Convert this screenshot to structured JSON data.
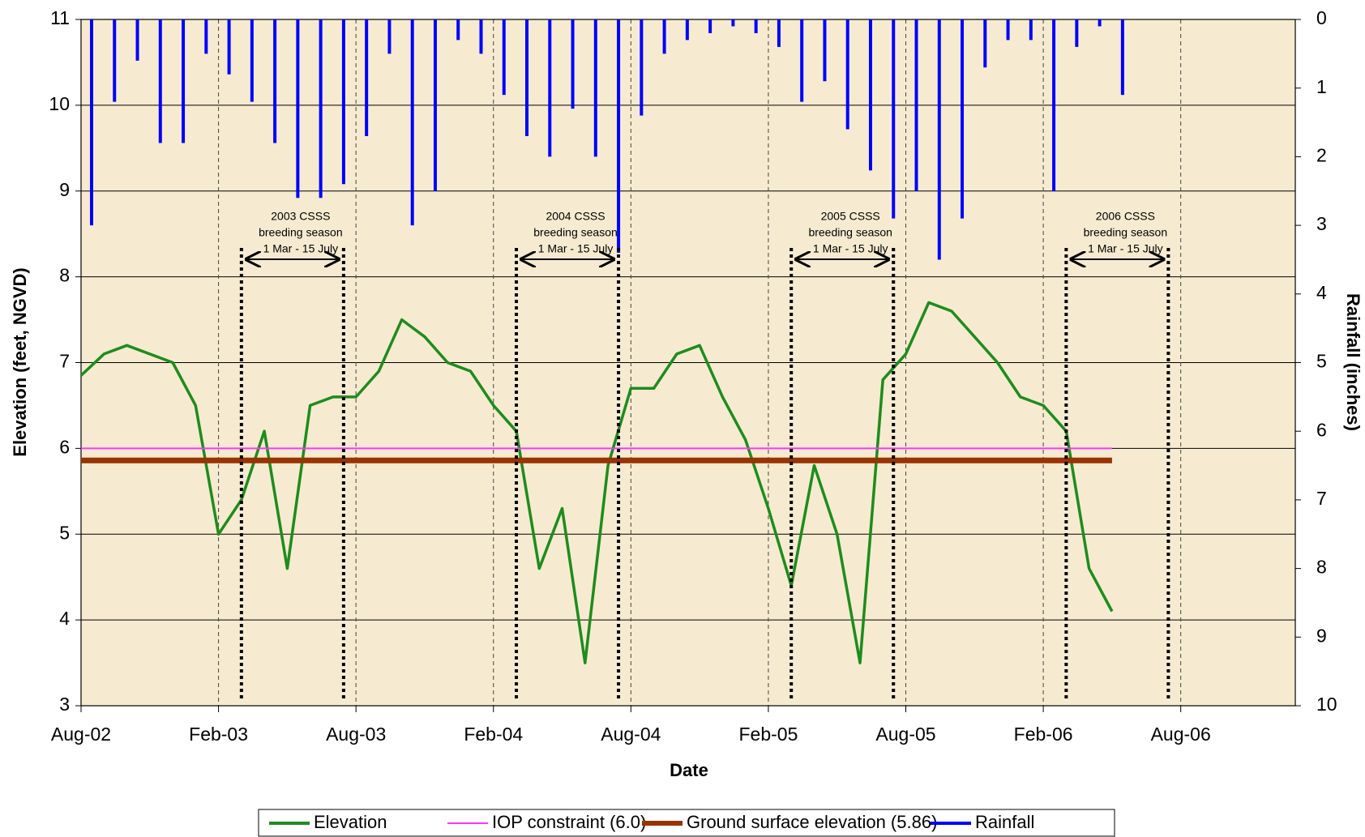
{
  "chart_data": {
    "type": "line",
    "xlabel": "Date",
    "ylabel": "Elevation (feet, NGVD)",
    "y2label": "Rainfall (inches)",
    "xlim": [
      "2002-08",
      "2007-01"
    ],
    "xticks": [
      {
        "value": "2002-08",
        "label": "Aug-02"
      },
      {
        "value": "2003-02",
        "label": "Feb-03"
      },
      {
        "value": "2003-08",
        "label": "Aug-03"
      },
      {
        "value": "2004-02",
        "label": "Feb-04"
      },
      {
        "value": "2004-08",
        "label": "Aug-04"
      },
      {
        "value": "2005-02",
        "label": "Feb-05"
      },
      {
        "value": "2005-08",
        "label": "Aug-05"
      },
      {
        "value": "2006-02",
        "label": "Feb-06"
      },
      {
        "value": "2006-08",
        "label": "Aug-06"
      }
    ],
    "ylim": [
      3,
      11
    ],
    "yticks": [
      3,
      4,
      5,
      6,
      7,
      8,
      9,
      10,
      11
    ],
    "y2lim": [
      10,
      0
    ],
    "y2ticks": [
      0,
      1,
      2,
      3,
      4,
      5,
      6,
      7,
      8,
      9,
      10
    ],
    "grid": true,
    "series": [
      {
        "name": "Elevation",
        "color": "#1e8c1e",
        "kind": "line",
        "x": [
          "2002-08",
          "2002-09",
          "2002-10",
          "2002-11",
          "2002-12",
          "2003-01",
          "2003-02",
          "2003-03",
          "2003-04",
          "2003-05",
          "2003-06",
          "2003-07",
          "2003-08",
          "2003-09",
          "2003-10",
          "2003-11",
          "2003-12",
          "2004-01",
          "2004-02",
          "2004-03",
          "2004-04",
          "2004-05",
          "2004-06",
          "2004-07",
          "2004-08",
          "2004-09",
          "2004-10",
          "2004-11",
          "2004-12",
          "2005-01",
          "2005-02",
          "2005-03",
          "2005-04",
          "2005-05",
          "2005-06",
          "2005-07",
          "2005-08",
          "2005-09",
          "2005-10",
          "2005-11",
          "2005-12",
          "2006-01",
          "2006-02",
          "2006-03",
          "2006-04",
          "2006-05"
        ],
        "values": [
          6.85,
          7.1,
          7.2,
          7.1,
          7.0,
          6.5,
          5.0,
          5.4,
          6.2,
          4.6,
          6.5,
          6.6,
          6.6,
          6.9,
          7.5,
          7.3,
          7.0,
          6.9,
          6.5,
          6.2,
          4.6,
          5.3,
          3.5,
          5.8,
          6.7,
          6.7,
          7.1,
          7.2,
          6.6,
          6.1,
          5.3,
          4.4,
          5.8,
          5.0,
          3.5,
          6.8,
          7.1,
          7.7,
          7.6,
          7.3,
          7.0,
          6.6,
          6.5,
          6.2,
          4.6,
          4.1
        ]
      },
      {
        "name": "IOP constraint (6.0)",
        "color": "#ff33ff",
        "kind": "line",
        "x": [
          "2002-08",
          "2006-05"
        ],
        "values": [
          6.0,
          6.0
        ]
      },
      {
        "name": "Ground surface elevation (5.86)",
        "color": "#993300",
        "kind": "line",
        "x": [
          "2002-08",
          "2006-05"
        ],
        "values": [
          5.86,
          5.86
        ]
      },
      {
        "name": "Rainfall",
        "color": "#0000ff",
        "kind": "bar",
        "axis": "y2",
        "x": [
          "2002-08",
          "2002-09",
          "2002-10",
          "2002-11",
          "2002-12",
          "2003-01",
          "2003-02",
          "2003-03",
          "2003-04",
          "2003-05",
          "2003-06",
          "2003-07",
          "2003-08",
          "2003-09",
          "2003-10",
          "2003-11",
          "2003-12",
          "2004-01",
          "2004-02",
          "2004-03",
          "2004-04",
          "2004-05",
          "2004-06",
          "2004-07",
          "2004-08",
          "2004-09",
          "2004-10",
          "2004-11",
          "2004-12",
          "2005-01",
          "2005-02",
          "2005-03",
          "2005-04",
          "2005-05",
          "2005-06",
          "2005-07",
          "2005-08",
          "2005-09",
          "2005-10",
          "2005-11",
          "2005-12",
          "2006-01",
          "2006-02",
          "2006-03",
          "2006-04",
          "2006-05"
        ],
        "values": [
          3.0,
          1.2,
          0.6,
          1.8,
          1.8,
          0.5,
          0.8,
          1.2,
          1.8,
          2.6,
          2.6,
          2.4,
          1.7,
          0.5,
          3.0,
          2.5,
          0.3,
          0.5,
          1.1,
          1.7,
          2.0,
          1.3,
          2.0,
          3.4,
          1.4,
          0.5,
          0.3,
          0.2,
          0.1,
          0.2,
          0.4,
          1.2,
          0.9,
          1.6,
          2.2,
          2.9,
          2.5,
          3.5,
          2.9,
          0.7,
          0.3,
          0.3,
          2.5,
          0.4,
          0.1,
          1.1
        ]
      }
    ],
    "annotations": [
      {
        "text": [
          "2003 CSSS",
          "breeding season",
          "1 Mar - 15 July"
        ],
        "span": [
          "2003-03-01",
          "2003-07-15"
        ]
      },
      {
        "text": [
          "2004 CSSS",
          "breeding season",
          "1 Mar - 15 July"
        ],
        "span": [
          "2004-03-01",
          "2004-07-15"
        ]
      },
      {
        "text": [
          "2005 CSSS",
          "breeding season",
          "1 Mar - 15 July"
        ],
        "span": [
          "2005-03-01",
          "2005-07-15"
        ]
      },
      {
        "text": [
          "2006 CSSS",
          "breeding season",
          "1 Mar - 15 July"
        ],
        "span": [
          "2006-03-01",
          "2006-07-15"
        ]
      }
    ]
  }
}
